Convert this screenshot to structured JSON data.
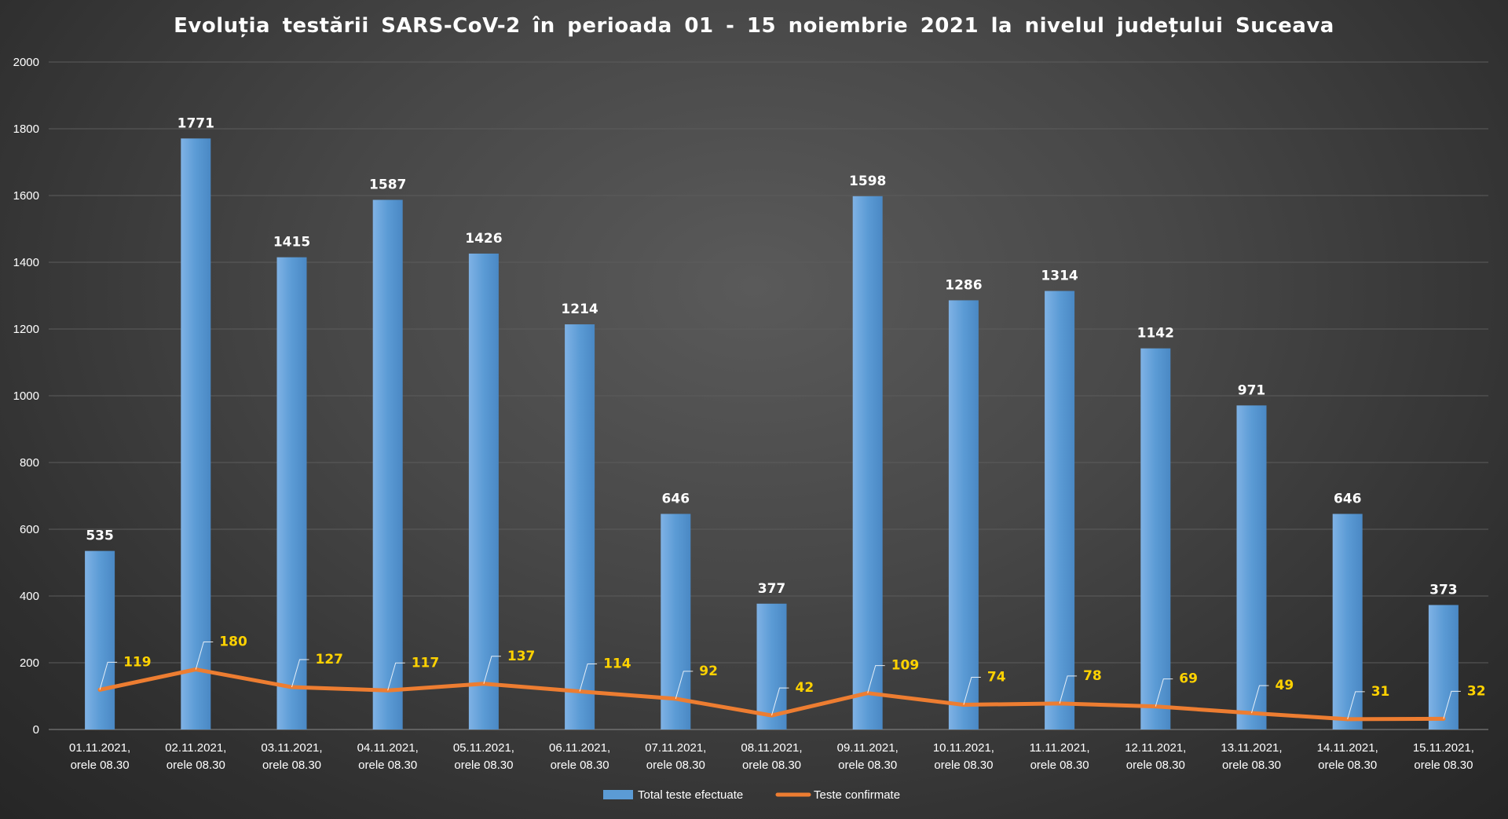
{
  "chart_data": {
    "type": "bar",
    "title": "Evoluția testării SARS-CoV-2 în perioada 01 - 15 noiembrie 2021 la nivelul județului Suceava",
    "categories": [
      [
        "01.11.2021,",
        "orele 08.30"
      ],
      [
        "02.11.2021,",
        "orele 08.30"
      ],
      [
        "03.11.2021,",
        "orele 08.30"
      ],
      [
        "04.11.2021,",
        "orele 08.30"
      ],
      [
        "05.11.2021,",
        "orele 08.30"
      ],
      [
        "06.11.2021,",
        "orele 08.30"
      ],
      [
        "07.11.2021,",
        "orele 08.30"
      ],
      [
        "08.11.2021,",
        "orele 08.30"
      ],
      [
        "09.11.2021,",
        "orele 08.30"
      ],
      [
        "10.11.2021,",
        "orele 08.30"
      ],
      [
        "11.11.2021,",
        "orele 08.30"
      ],
      [
        "12.11.2021,",
        "orele 08.30"
      ],
      [
        "13.11.2021,",
        "orele 08.30"
      ],
      [
        "14.11.2021,",
        "orele 08.30"
      ],
      [
        "15.11.2021,",
        "orele 08.30"
      ]
    ],
    "series": [
      {
        "name": "Total teste efectuate",
        "type": "bar",
        "color": "#5b9bd5",
        "values": [
          535,
          1771,
          1415,
          1587,
          1426,
          1214,
          646,
          377,
          1598,
          1286,
          1314,
          1142,
          971,
          646,
          373
        ]
      },
      {
        "name": "Teste confirmate",
        "type": "line",
        "color": "#ed7d31",
        "label_color": "#ffd200",
        "values": [
          119,
          180,
          127,
          117,
          137,
          114,
          92,
          42,
          109,
          74,
          78,
          69,
          49,
          31,
          32
        ]
      }
    ],
    "ylim": [
      0,
      2000
    ],
    "yticks": [
      0,
      200,
      400,
      600,
      800,
      1000,
      1200,
      1400,
      1600,
      1800,
      2000
    ],
    "grid": true,
    "legend": "bottom",
    "xlabel": "",
    "ylabel": ""
  }
}
